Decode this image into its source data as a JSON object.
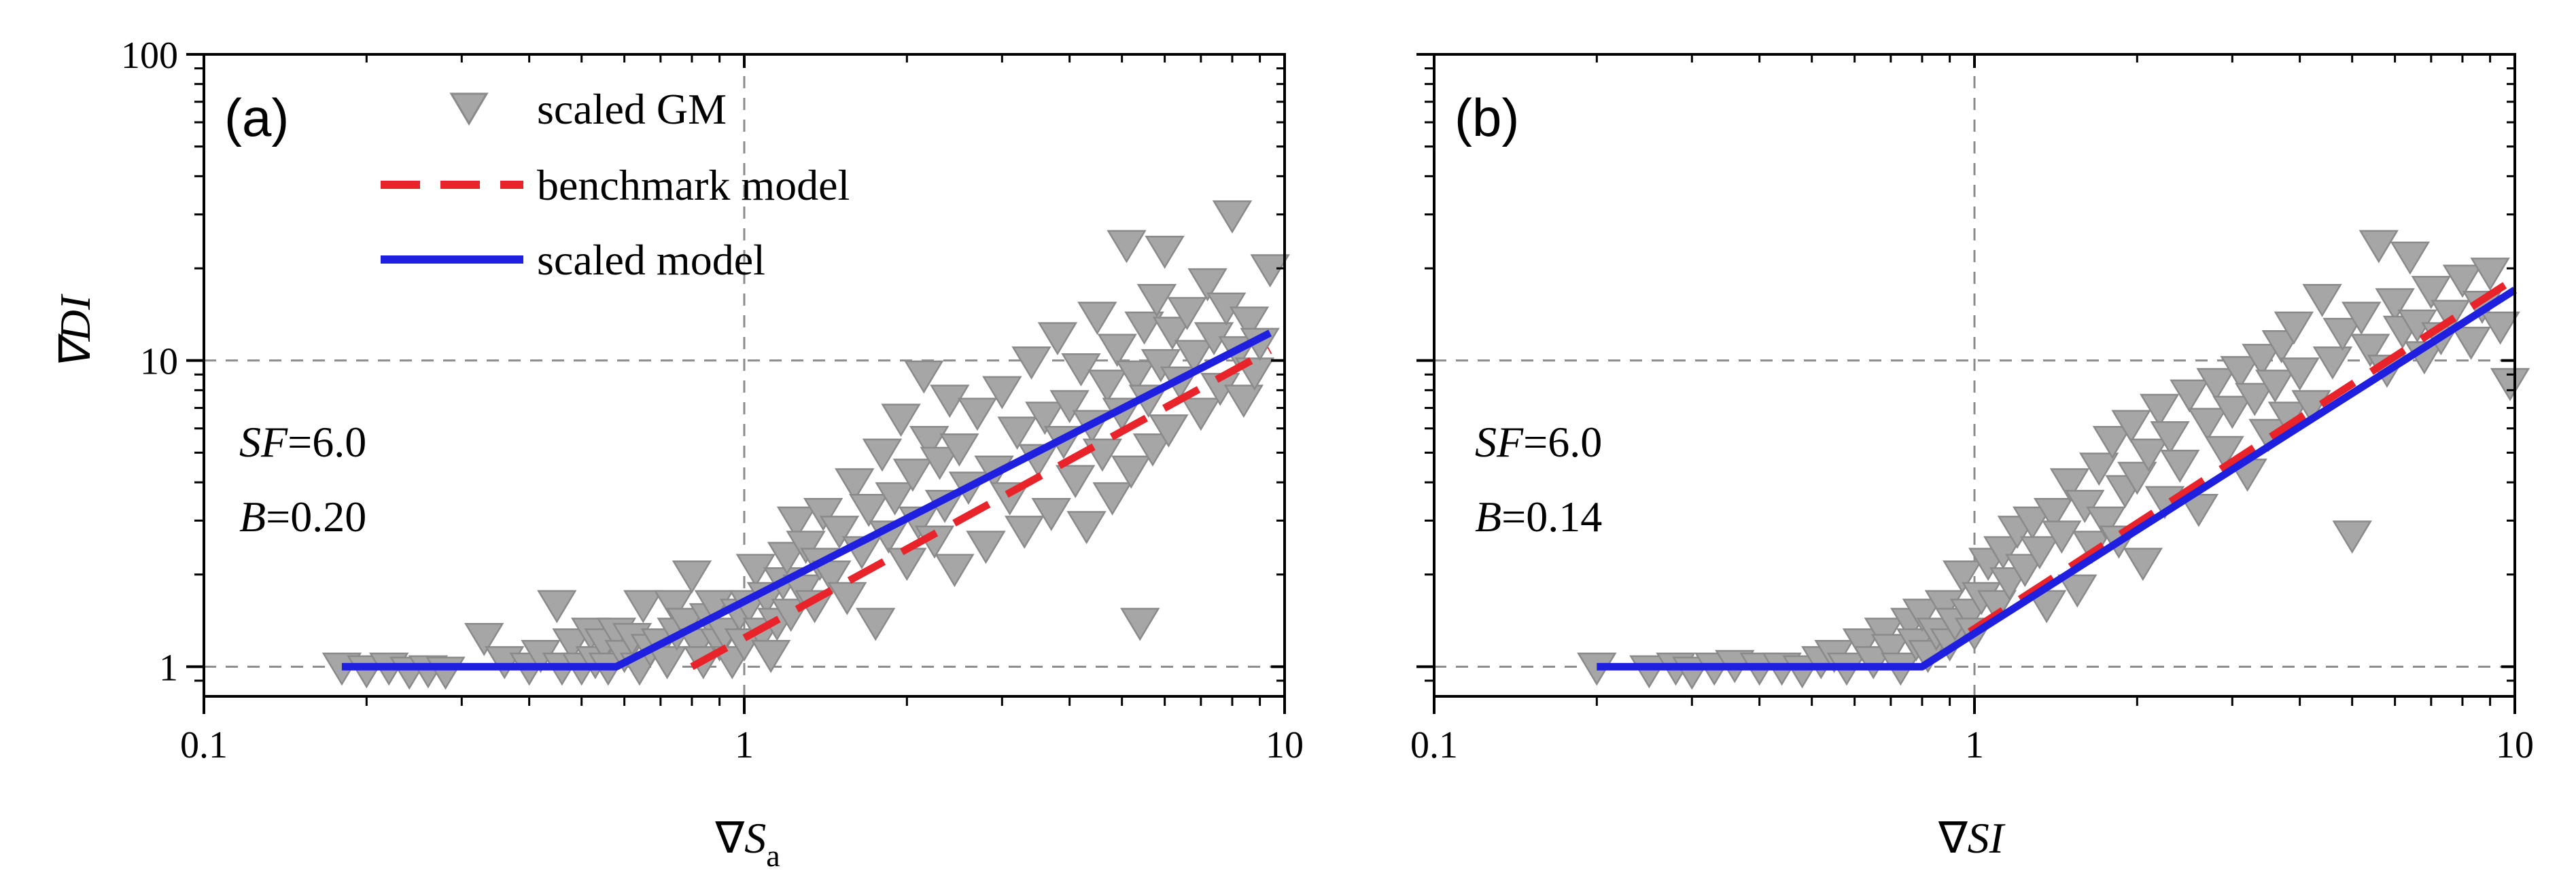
{
  "chart_data": [
    {
      "type": "scatter",
      "panel_label": "(a)",
      "xlabel_symbol": "∇",
      "xlabel_main": "S",
      "xlabel_sub": "a",
      "ylabel": "∇DI",
      "xscale": "log",
      "yscale": "log",
      "xlim": [
        0.1,
        10
      ],
      "ylim": [
        0.8,
        100
      ],
      "x_ticks": [
        0.1,
        1,
        10
      ],
      "x_tick_labels": [
        "0.1",
        "1",
        "10"
      ],
      "y_ticks": [
        1,
        10,
        100
      ],
      "y_tick_labels": [
        "1",
        "10",
        "100"
      ],
      "ref_lines": {
        "x": [
          1
        ],
        "y": [
          1,
          10
        ]
      },
      "annotation": {
        "sf_label": "SF",
        "sf_value": "=6.0",
        "b_label": "B",
        "b_value": "=0.20"
      },
      "legend": {
        "placement": "top-left",
        "entries": [
          "scaled GM",
          "benchmark model",
          "scaled model"
        ]
      },
      "series": [
        {
          "name": "scaled GM",
          "kind": "points",
          "marker": "triangle-down",
          "color": "#a6a6a6",
          "points": [
            [
              0.18,
              1.0
            ],
            [
              0.2,
              0.98
            ],
            [
              0.22,
              1.0
            ],
            [
              0.24,
              0.97
            ],
            [
              0.26,
              0.98
            ],
            [
              0.28,
              0.97
            ],
            [
              0.33,
              1.25
            ],
            [
              0.36,
              1.05
            ],
            [
              0.4,
              1.0
            ],
            [
              0.42,
              1.1
            ],
            [
              0.45,
              1.6
            ],
            [
              0.46,
              1.0
            ],
            [
              0.48,
              1.2
            ],
            [
              0.5,
              1.0
            ],
            [
              0.52,
              1.3
            ],
            [
              0.53,
              1.05
            ],
            [
              0.55,
              1.2
            ],
            [
              0.56,
              1.0
            ],
            [
              0.58,
              1.3
            ],
            [
              0.6,
              1.1
            ],
            [
              0.62,
              1.25
            ],
            [
              0.64,
              1.0
            ],
            [
              0.65,
              1.6
            ],
            [
              0.67,
              1.15
            ],
            [
              0.7,
              1.2
            ],
            [
              0.72,
              1.05
            ],
            [
              0.74,
              1.6
            ],
            [
              0.75,
              1.3
            ],
            [
              0.78,
              1.4
            ],
            [
              0.8,
              2.0
            ],
            [
              0.82,
              1.2
            ],
            [
              0.84,
              1.05
            ],
            [
              0.86,
              1.45
            ],
            [
              0.88,
              1.6
            ],
            [
              0.9,
              1.2
            ],
            [
              0.92,
              1.3
            ],
            [
              0.95,
              1.05
            ],
            [
              0.98,
              1.5
            ],
            [
              1.0,
              1.2
            ],
            [
              1.02,
              1.6
            ],
            [
              1.05,
              2.1
            ],
            [
              1.08,
              1.3
            ],
            [
              1.1,
              1.7
            ],
            [
              1.12,
              1.1
            ],
            [
              1.15,
              1.4
            ],
            [
              1.18,
              1.9
            ],
            [
              1.2,
              2.3
            ],
            [
              1.22,
              1.5
            ],
            [
              1.25,
              3.0
            ],
            [
              1.28,
              1.8
            ],
            [
              1.3,
              2.5
            ],
            [
              1.35,
              1.6
            ],
            [
              1.38,
              2.2
            ],
            [
              1.4,
              3.2
            ],
            [
              1.45,
              2.0
            ],
            [
              1.5,
              2.8
            ],
            [
              1.55,
              1.7
            ],
            [
              1.6,
              4.0
            ],
            [
              1.65,
              2.4
            ],
            [
              1.7,
              3.3
            ],
            [
              1.75,
              1.4
            ],
            [
              1.8,
              5.0
            ],
            [
              1.85,
              2.7
            ],
            [
              1.9,
              3.6
            ],
            [
              1.95,
              6.5
            ],
            [
              2.0,
              2.2
            ],
            [
              2.05,
              4.3
            ],
            [
              2.1,
              3.0
            ],
            [
              2.15,
              9.0
            ],
            [
              2.2,
              5.5
            ],
            [
              2.25,
              2.6
            ],
            [
              2.3,
              4.7
            ],
            [
              2.35,
              3.4
            ],
            [
              2.4,
              7.5
            ],
            [
              2.45,
              2.1
            ],
            [
              2.5,
              5.2
            ],
            [
              2.6,
              3.9
            ],
            [
              2.7,
              6.8
            ],
            [
              2.8,
              2.5
            ],
            [
              2.9,
              4.4
            ],
            [
              3.0,
              8.0
            ],
            [
              3.1,
              3.6
            ],
            [
              3.2,
              5.9
            ],
            [
              3.3,
              2.8
            ],
            [
              3.4,
              10.0
            ],
            [
              3.5,
              4.8
            ],
            [
              3.6,
              6.6
            ],
            [
              3.7,
              3.2
            ],
            [
              3.8,
              12.0
            ],
            [
              3.9,
              5.5
            ],
            [
              4.0,
              7.2
            ],
            [
              4.1,
              4.1
            ],
            [
              4.2,
              9.5
            ],
            [
              4.3,
              2.9
            ],
            [
              4.4,
              6.2
            ],
            [
              4.5,
              14.0
            ],
            [
              4.6,
              5.0
            ],
            [
              4.7,
              8.4
            ],
            [
              4.8,
              3.6
            ],
            [
              4.9,
              11.0
            ],
            [
              5.0,
              6.8
            ],
            [
              5.1,
              24.0
            ],
            [
              5.2,
              4.4
            ],
            [
              5.3,
              9.0
            ],
            [
              5.4,
              1.4
            ],
            [
              5.5,
              13.0
            ],
            [
              5.6,
              7.5
            ],
            [
              5.7,
              5.2
            ],
            [
              5.8,
              16.0
            ],
            [
              5.9,
              9.8
            ],
            [
              6.0,
              23.0
            ],
            [
              6.1,
              6.0
            ],
            [
              6.2,
              12.5
            ],
            [
              6.4,
              8.6
            ],
            [
              6.6,
              14.5
            ],
            [
              6.8,
              10.5
            ],
            [
              7.0,
              6.8
            ],
            [
              7.2,
              18.0
            ],
            [
              7.4,
              12.0
            ],
            [
              7.6,
              8.2
            ],
            [
              7.8,
              15.0
            ],
            [
              8.0,
              30.0
            ],
            [
              8.2,
              10.8
            ],
            [
              8.4,
              7.5
            ],
            [
              8.6,
              13.5
            ],
            [
              8.8,
              9.2
            ],
            [
              9.0,
              11.5
            ],
            [
              9.4,
              20.0
            ]
          ]
        },
        {
          "name": "benchmark model",
          "kind": "line",
          "style": "dashed",
          "color": "#e8232a",
          "points": [
            [
              0.8,
              1.0
            ],
            [
              9.4,
              10.8
            ]
          ]
        },
        {
          "name": "scaled model",
          "kind": "line",
          "style": "solid",
          "color": "#1f1fe0",
          "points": [
            [
              0.18,
              1.0
            ],
            [
              0.58,
              1.0
            ],
            [
              9.4,
              12.3
            ]
          ]
        }
      ]
    },
    {
      "type": "scatter",
      "panel_label": "(b)",
      "xlabel_symbol": "∇",
      "xlabel_main": "SI",
      "xlabel_sub": "",
      "ylabel": "",
      "xscale": "log",
      "yscale": "log",
      "xlim": [
        0.1,
        10
      ],
      "ylim": [
        0.8,
        100
      ],
      "x_ticks": [
        0.1,
        1,
        10
      ],
      "x_tick_labels": [
        "0.1",
        "1",
        "10"
      ],
      "y_ticks": [
        1,
        10,
        100
      ],
      "y_tick_labels": [
        "",
        "",
        ""
      ],
      "ref_lines": {
        "x": [
          1
        ],
        "y": [
          1,
          10
        ]
      },
      "annotation": {
        "sf_label": "SF",
        "sf_value": "=6.0",
        "b_label": "B",
        "b_value": "=0.14"
      },
      "series": [
        {
          "name": "scaled GM",
          "kind": "points",
          "marker": "triangle-down",
          "color": "#a6a6a6",
          "points": [
            [
              0.2,
              1.0
            ],
            [
              0.25,
              0.98
            ],
            [
              0.28,
              1.0
            ],
            [
              0.3,
              0.97
            ],
            [
              0.33,
              1.0
            ],
            [
              0.36,
              1.02
            ],
            [
              0.4,
              1.0
            ],
            [
              0.44,
              1.0
            ],
            [
              0.48,
              0.98
            ],
            [
              0.52,
              1.05
            ],
            [
              0.55,
              1.1
            ],
            [
              0.58,
              1.0
            ],
            [
              0.62,
              1.2
            ],
            [
              0.65,
              1.05
            ],
            [
              0.68,
              1.3
            ],
            [
              0.7,
              1.15
            ],
            [
              0.73,
              1.0
            ],
            [
              0.76,
              1.4
            ],
            [
              0.78,
              1.2
            ],
            [
              0.8,
              1.5
            ],
            [
              0.82,
              1.1
            ],
            [
              0.85,
              1.3
            ],
            [
              0.88,
              1.6
            ],
            [
              0.9,
              1.2
            ],
            [
              0.92,
              1.4
            ],
            [
              0.95,
              2.0
            ],
            [
              0.98,
              1.5
            ],
            [
              1.0,
              1.3
            ],
            [
              1.03,
              1.7
            ],
            [
              1.06,
              2.2
            ],
            [
              1.1,
              1.6
            ],
            [
              1.13,
              2.4
            ],
            [
              1.16,
              1.9
            ],
            [
              1.2,
              2.8
            ],
            [
              1.24,
              2.1
            ],
            [
              1.28,
              3.0
            ],
            [
              1.32,
              2.4
            ],
            [
              1.36,
              1.6
            ],
            [
              1.4,
              3.2
            ],
            [
              1.45,
              2.7
            ],
            [
              1.5,
              4.0
            ],
            [
              1.55,
              1.8
            ],
            [
              1.6,
              3.4
            ],
            [
              1.65,
              2.5
            ],
            [
              1.7,
              4.5
            ],
            [
              1.75,
              3.0
            ],
            [
              1.8,
              5.5
            ],
            [
              1.85,
              2.6
            ],
            [
              1.9,
              3.8
            ],
            [
              1.95,
              6.2
            ],
            [
              2.0,
              4.2
            ],
            [
              2.05,
              2.2
            ],
            [
              2.1,
              5.0
            ],
            [
              2.2,
              7.0
            ],
            [
              2.25,
              3.5
            ],
            [
              2.3,
              5.7
            ],
            [
              2.4,
              4.6
            ],
            [
              2.5,
              7.8
            ],
            [
              2.6,
              3.3
            ],
            [
              2.7,
              6.3
            ],
            [
              2.8,
              8.5
            ],
            [
              2.9,
              5.1
            ],
            [
              3.0,
              6.9
            ],
            [
              3.1,
              9.3
            ],
            [
              3.2,
              4.3
            ],
            [
              3.3,
              7.6
            ],
            [
              3.4,
              10.2
            ],
            [
              3.5,
              5.8
            ],
            [
              3.6,
              8.4
            ],
            [
              3.7,
              11.3
            ],
            [
              3.8,
              6.6
            ],
            [
              3.9,
              13.0
            ],
            [
              4.0,
              9.2
            ],
            [
              4.2,
              7.2
            ],
            [
              4.4,
              16.0
            ],
            [
              4.6,
              10.0
            ],
            [
              4.8,
              12.4
            ],
            [
              5.0,
              2.7
            ],
            [
              5.2,
              14.0
            ],
            [
              5.4,
              11.0
            ],
            [
              5.6,
              24.0
            ],
            [
              5.8,
              9.4
            ],
            [
              6.0,
              15.5
            ],
            [
              6.2,
              12.6
            ],
            [
              6.4,
              22.0
            ],
            [
              6.6,
              13.2
            ],
            [
              6.8,
              10.4
            ],
            [
              7.0,
              17.0
            ],
            [
              7.3,
              12.0
            ],
            [
              7.6,
              14.2
            ],
            [
              8.0,
              18.5
            ],
            [
              8.3,
              11.6
            ],
            [
              8.7,
              15.2
            ],
            [
              9.0,
              19.5
            ],
            [
              9.4,
              13.0
            ],
            [
              9.8,
              8.5
            ]
          ]
        },
        {
          "name": "benchmark model",
          "kind": "line",
          "style": "dashed",
          "color": "#e8232a",
          "points": [
            [
              0.98,
              1.3
            ],
            [
              10,
              18.5
            ]
          ]
        },
        {
          "name": "scaled model",
          "kind": "line",
          "style": "solid",
          "color": "#1f1fe0",
          "points": [
            [
              0.2,
              1.0
            ],
            [
              0.8,
              1.0
            ],
            [
              10,
              17.0
            ]
          ]
        }
      ]
    }
  ]
}
